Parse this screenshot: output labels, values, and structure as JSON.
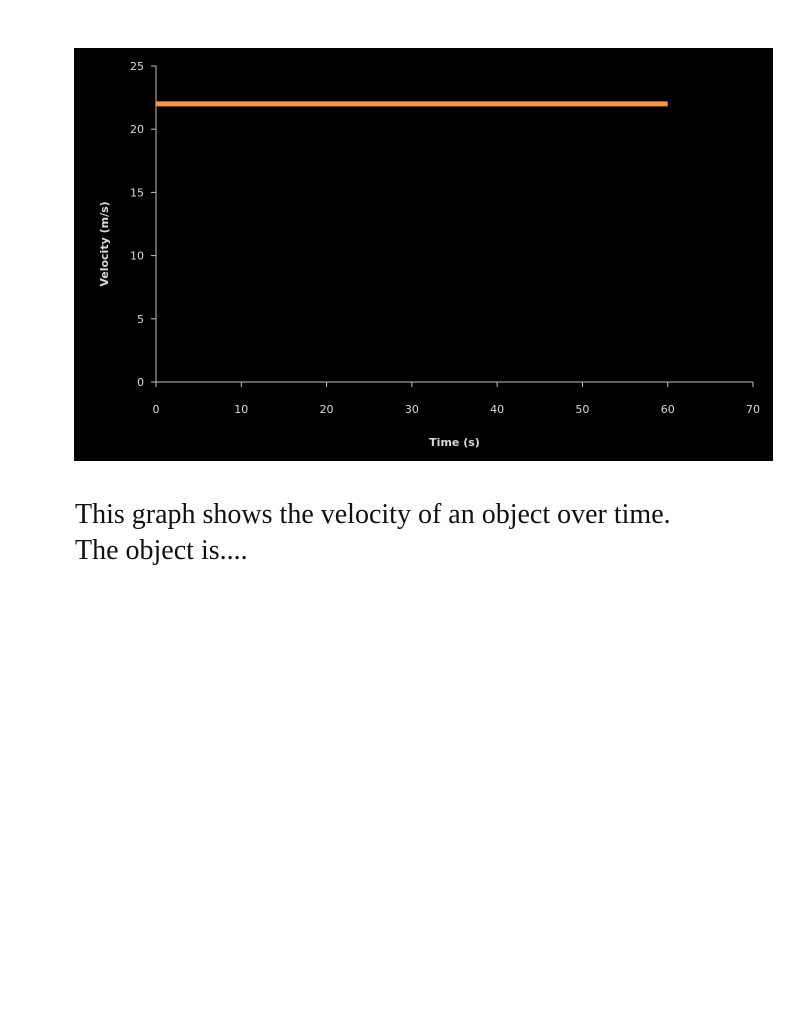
{
  "chart_data": {
    "type": "line",
    "xlabel": "Time (s)",
    "ylabel": "Velocity (m/s)",
    "xlim": [
      0,
      70
    ],
    "ylim": [
      0,
      25
    ],
    "x_ticks": [
      0,
      10,
      20,
      30,
      40,
      50,
      60,
      70
    ],
    "y_ticks": [
      0,
      5,
      10,
      15,
      20,
      25
    ],
    "grid": false,
    "background_color": "#000000",
    "axis_color": "#bfbfbf",
    "series": [
      {
        "color": "#f79646",
        "x": [
          0,
          60
        ],
        "y": [
          22,
          22
        ]
      }
    ]
  },
  "caption": {
    "line1": "This graph shows the velocity of an object over time.",
    "line2": "The object is...."
  }
}
